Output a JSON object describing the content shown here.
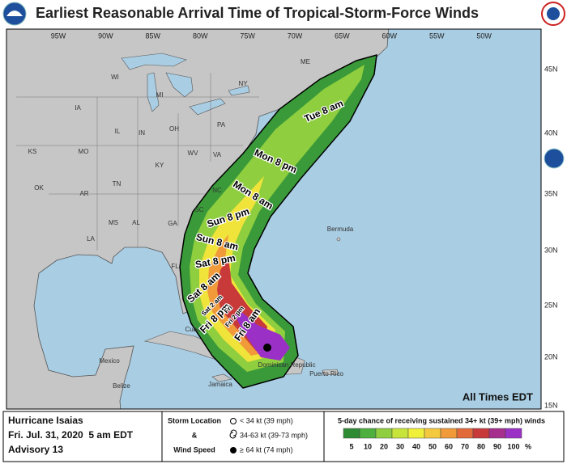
{
  "header": {
    "title": "Earliest Reasonable Arrival Time of Tropical-Storm-Force Winds"
  },
  "map": {
    "lon_labels": [
      "95W",
      "90W",
      "85W",
      "80W",
      "75W",
      "70W",
      "65W",
      "60W",
      "55W",
      "50W"
    ],
    "lat_labels": [
      "45N",
      "40N",
      "35N",
      "30N",
      "25N",
      "20N",
      "15N"
    ],
    "place_labels": [
      "ME",
      "NY",
      "MI",
      "WI",
      "IA",
      "IL",
      "IN",
      "OH",
      "PA",
      "KS",
      "MO",
      "KY",
      "WV",
      "VA",
      "OK",
      "AR",
      "TN",
      "NC",
      "SC",
      "MS",
      "AL",
      "GA",
      "LA",
      "FL",
      "Bermuda",
      "Mexico",
      "Cuba",
      "Belize",
      "Jamaica",
      "Dominican Republic",
      "Puerto Rico"
    ],
    "note": "All Times EDT"
  },
  "swath": {
    "time_labels": [
      "Tue 8 am",
      "Mon 8 pm",
      "Mon 8 am",
      "Sun 8 pm",
      "Sun 8 am",
      "Sat 8 pm",
      "Sat 8 am",
      "Sat 2 am",
      "Fri 8 pm",
      "Fri 2 pm",
      "Fri 8 am",
      "Fri"
    ]
  },
  "footer": {
    "storm_name": "Hurricane Isaias",
    "date": "Fri. Jul. 31, 2020  5 am EDT",
    "advisory": "Advisory 13",
    "legend_title": [
      "Storm Location",
      "&",
      "Wind Speed"
    ],
    "legend_items": [
      "< 34 kt (39 mph)",
      "34-63 kt (39-73 mph)",
      "≥ 64 kt (74 mph)"
    ],
    "colorbar_title": "5-day chance of receiving sustained 34+ kt (39+ mph) winds",
    "colorbar_values": [
      5,
      10,
      20,
      30,
      40,
      50,
      60,
      70,
      80,
      90,
      100
    ],
    "colorbar_unit": "%"
  }
}
